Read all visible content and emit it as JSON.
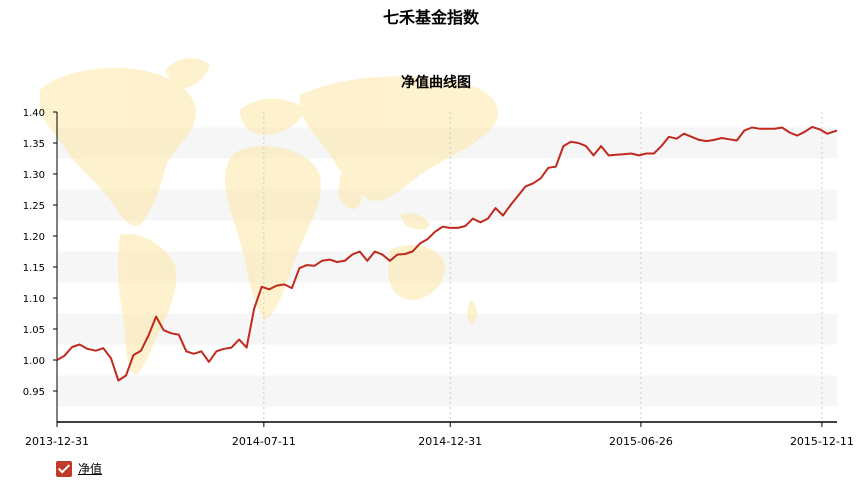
{
  "page": {
    "title": "七禾基金指数"
  },
  "chart_data": {
    "type": "line",
    "title": "净值曲线图",
    "xlabel": "",
    "ylabel": "",
    "ylim": [
      0.9,
      1.4
    ],
    "yticks": [
      "0.95",
      "1.00",
      "1.05",
      "1.10",
      "1.15",
      "1.20",
      "1.25",
      "1.30",
      "1.35",
      "1.40"
    ],
    "xticks": [
      "2013-12-31",
      "2014-07-11",
      "2014-12-31",
      "2015-06-26",
      "2015-12-11"
    ],
    "xlim": [
      "2013-12-31",
      "2015-12-25"
    ],
    "grid": {
      "x": "dotted",
      "y": "bands"
    },
    "series": [
      {
        "name": "净值",
        "color": "#c0291d",
        "points": [
          [
            "2013-12-31",
            1.0
          ],
          [
            "2014-01-07",
            1.007
          ],
          [
            "2014-01-14",
            1.021
          ],
          [
            "2014-01-21",
            1.025
          ],
          [
            "2014-01-28",
            1.018
          ],
          [
            "2014-02-05",
            1.015
          ],
          [
            "2014-02-12",
            1.019
          ],
          [
            "2014-02-19",
            1.003
          ],
          [
            "2014-02-26",
            0.967
          ],
          [
            "2014-03-05",
            0.975
          ],
          [
            "2014-03-12",
            1.008
          ],
          [
            "2014-03-19",
            1.015
          ],
          [
            "2014-03-26",
            1.04
          ],
          [
            "2014-04-02",
            1.07
          ],
          [
            "2014-04-09",
            1.048
          ],
          [
            "2014-04-16",
            1.043
          ],
          [
            "2014-04-23",
            1.041
          ],
          [
            "2014-04-30",
            1.014
          ],
          [
            "2014-05-07",
            1.01
          ],
          [
            "2014-05-14",
            1.014
          ],
          [
            "2014-05-21",
            0.997
          ],
          [
            "2014-05-28",
            1.014
          ],
          [
            "2014-06-04",
            1.018
          ],
          [
            "2014-06-11",
            1.02
          ],
          [
            "2014-06-18",
            1.033
          ],
          [
            "2014-06-25",
            1.02
          ],
          [
            "2014-07-02",
            1.083
          ],
          [
            "2014-07-09",
            1.118
          ],
          [
            "2014-07-16",
            1.114
          ],
          [
            "2014-07-23",
            1.12
          ],
          [
            "2014-07-30",
            1.122
          ],
          [
            "2014-08-06",
            1.116
          ],
          [
            "2014-08-13",
            1.148
          ],
          [
            "2014-08-20",
            1.153
          ],
          [
            "2014-08-27",
            1.152
          ],
          [
            "2014-09-03",
            1.16
          ],
          [
            "2014-09-10",
            1.162
          ],
          [
            "2014-09-17",
            1.158
          ],
          [
            "2014-09-24",
            1.16
          ],
          [
            "2014-10-01",
            1.17
          ],
          [
            "2014-10-08",
            1.175
          ],
          [
            "2014-10-15",
            1.16
          ],
          [
            "2014-10-22",
            1.175
          ],
          [
            "2014-10-29",
            1.17
          ],
          [
            "2014-11-05",
            1.16
          ],
          [
            "2014-11-12",
            1.17
          ],
          [
            "2014-11-19",
            1.171
          ],
          [
            "2014-11-26",
            1.175
          ],
          [
            "2014-12-03",
            1.188
          ],
          [
            "2014-12-10",
            1.195
          ],
          [
            "2014-12-17",
            1.207
          ],
          [
            "2014-12-24",
            1.215
          ],
          [
            "2014-12-31",
            1.213
          ],
          [
            "2015-01-07",
            1.213
          ],
          [
            "2015-01-14",
            1.216
          ],
          [
            "2015-01-21",
            1.228
          ],
          [
            "2015-01-28",
            1.222
          ],
          [
            "2015-02-04",
            1.228
          ],
          [
            "2015-02-11",
            1.245
          ],
          [
            "2015-02-18",
            1.233
          ],
          [
            "2015-02-25",
            1.25
          ],
          [
            "2015-03-04",
            1.265
          ],
          [
            "2015-03-11",
            1.28
          ],
          [
            "2015-03-18",
            1.285
          ],
          [
            "2015-03-25",
            1.293
          ],
          [
            "2015-04-01",
            1.31
          ],
          [
            "2015-04-08",
            1.312
          ],
          [
            "2015-04-15",
            1.345
          ],
          [
            "2015-04-22",
            1.352
          ],
          [
            "2015-04-29",
            1.35
          ],
          [
            "2015-05-06",
            1.345
          ],
          [
            "2015-05-13",
            1.33
          ],
          [
            "2015-05-20",
            1.345
          ],
          [
            "2015-05-27",
            1.33
          ],
          [
            "2015-06-03",
            1.331
          ],
          [
            "2015-06-10",
            1.332
          ],
          [
            "2015-06-17",
            1.333
          ],
          [
            "2015-06-24",
            1.33
          ],
          [
            "2015-07-01",
            1.333
          ],
          [
            "2015-07-08",
            1.333
          ],
          [
            "2015-07-15",
            1.345
          ],
          [
            "2015-07-22",
            1.36
          ],
          [
            "2015-07-29",
            1.357
          ],
          [
            "2015-08-05",
            1.365
          ],
          [
            "2015-08-12",
            1.36
          ],
          [
            "2015-08-19",
            1.355
          ],
          [
            "2015-08-26",
            1.353
          ],
          [
            "2015-09-02",
            1.355
          ],
          [
            "2015-09-09",
            1.358
          ],
          [
            "2015-09-16",
            1.356
          ],
          [
            "2015-09-23",
            1.354
          ],
          [
            "2015-09-30",
            1.37
          ],
          [
            "2015-10-07",
            1.375
          ],
          [
            "2015-10-14",
            1.373
          ],
          [
            "2015-10-21",
            1.373
          ],
          [
            "2015-10-28",
            1.373
          ],
          [
            "2015-11-04",
            1.375
          ],
          [
            "2015-11-11",
            1.367
          ],
          [
            "2015-11-18",
            1.362
          ],
          [
            "2015-11-25",
            1.368
          ],
          [
            "2015-12-02",
            1.376
          ],
          [
            "2015-12-09",
            1.372
          ],
          [
            "2015-12-16",
            1.365
          ],
          [
            "2015-12-25",
            1.37
          ]
        ]
      }
    ],
    "legend": {
      "position": "bottom-left",
      "label": "净值",
      "checked": true
    }
  }
}
